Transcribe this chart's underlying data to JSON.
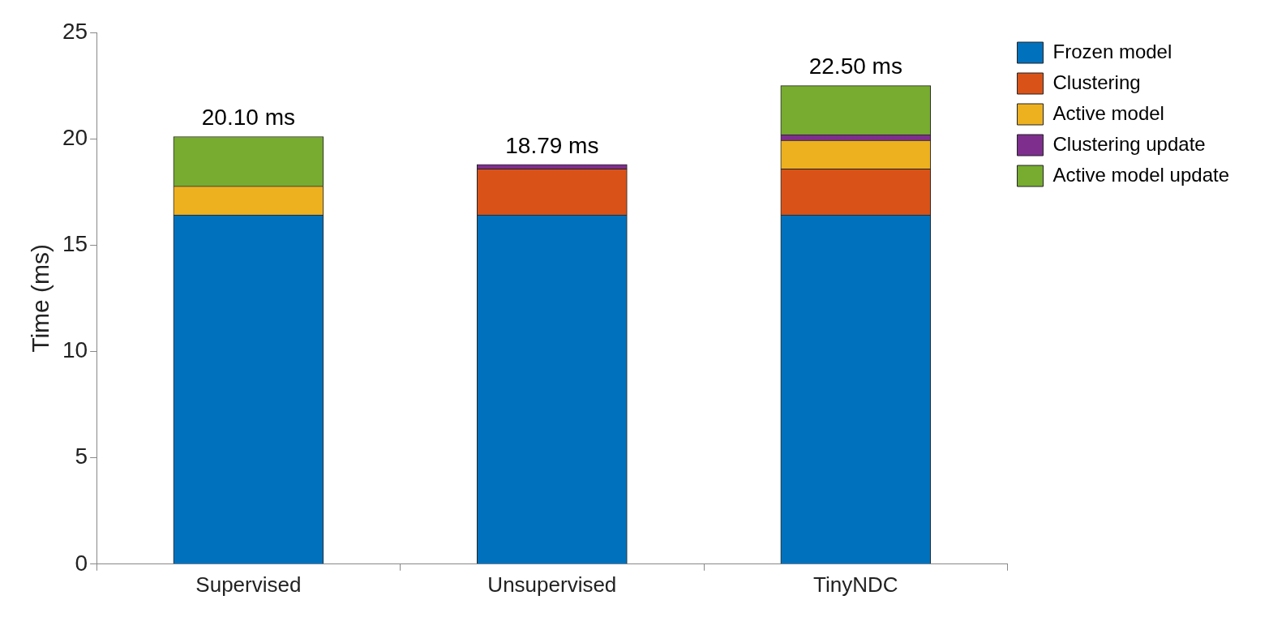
{
  "chart_data": {
    "type": "bar",
    "ylabel": "Time (ms)",
    "categories": [
      "Supervised",
      "Unsupervised",
      "TinyNDC"
    ],
    "stacked": true,
    "ylim": [
      0,
      25
    ],
    "yticks": [
      0,
      5,
      10,
      15,
      20,
      25
    ],
    "grid": false,
    "legend": "right",
    "series": [
      {
        "name": "Frozen model",
        "color": "#0072bd",
        "values": [
          16.42,
          16.42,
          16.42
        ]
      },
      {
        "name": "Clustering",
        "color": "#d95319",
        "values": [
          null,
          2.16,
          2.16
        ]
      },
      {
        "name": "Active model",
        "color": "#edb120",
        "values": [
          1.35,
          null,
          1.35
        ]
      },
      {
        "name": "Clustering update",
        "color": "#7e2f8e",
        "values": [
          null,
          0.21,
          0.26
        ]
      },
      {
        "name": "Active model update",
        "color": "#77ac30",
        "values": [
          2.33,
          null,
          2.31
        ]
      }
    ],
    "totals": [
      "20.10 ms",
      "18.79 ms",
      "22.50 ms"
    ]
  }
}
